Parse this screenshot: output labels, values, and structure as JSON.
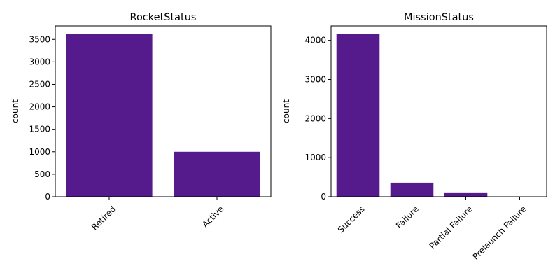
{
  "bar_color": "#551a8b",
  "chart_data": [
    {
      "type": "bar",
      "title": "RocketStatus",
      "xlabel": "",
      "ylabel": "count",
      "categories": [
        "Retired",
        "Active"
      ],
      "values": [
        3620,
        1000
      ],
      "ylim": [
        0,
        3800
      ],
      "yticks": [
        0,
        500,
        1000,
        1500,
        2000,
        2500,
        3000,
        3500
      ],
      "grid": false
    },
    {
      "type": "bar",
      "title": "MissionStatus",
      "xlabel": "",
      "ylabel": "count",
      "categories": [
        "Success",
        "Failure",
        "Partial Failure",
        "Prelaunch Failure"
      ],
      "values": [
        4160,
        360,
        110,
        5
      ],
      "ylim": [
        0,
        4370
      ],
      "yticks": [
        0,
        1000,
        2000,
        3000,
        4000
      ],
      "grid": false
    }
  ]
}
